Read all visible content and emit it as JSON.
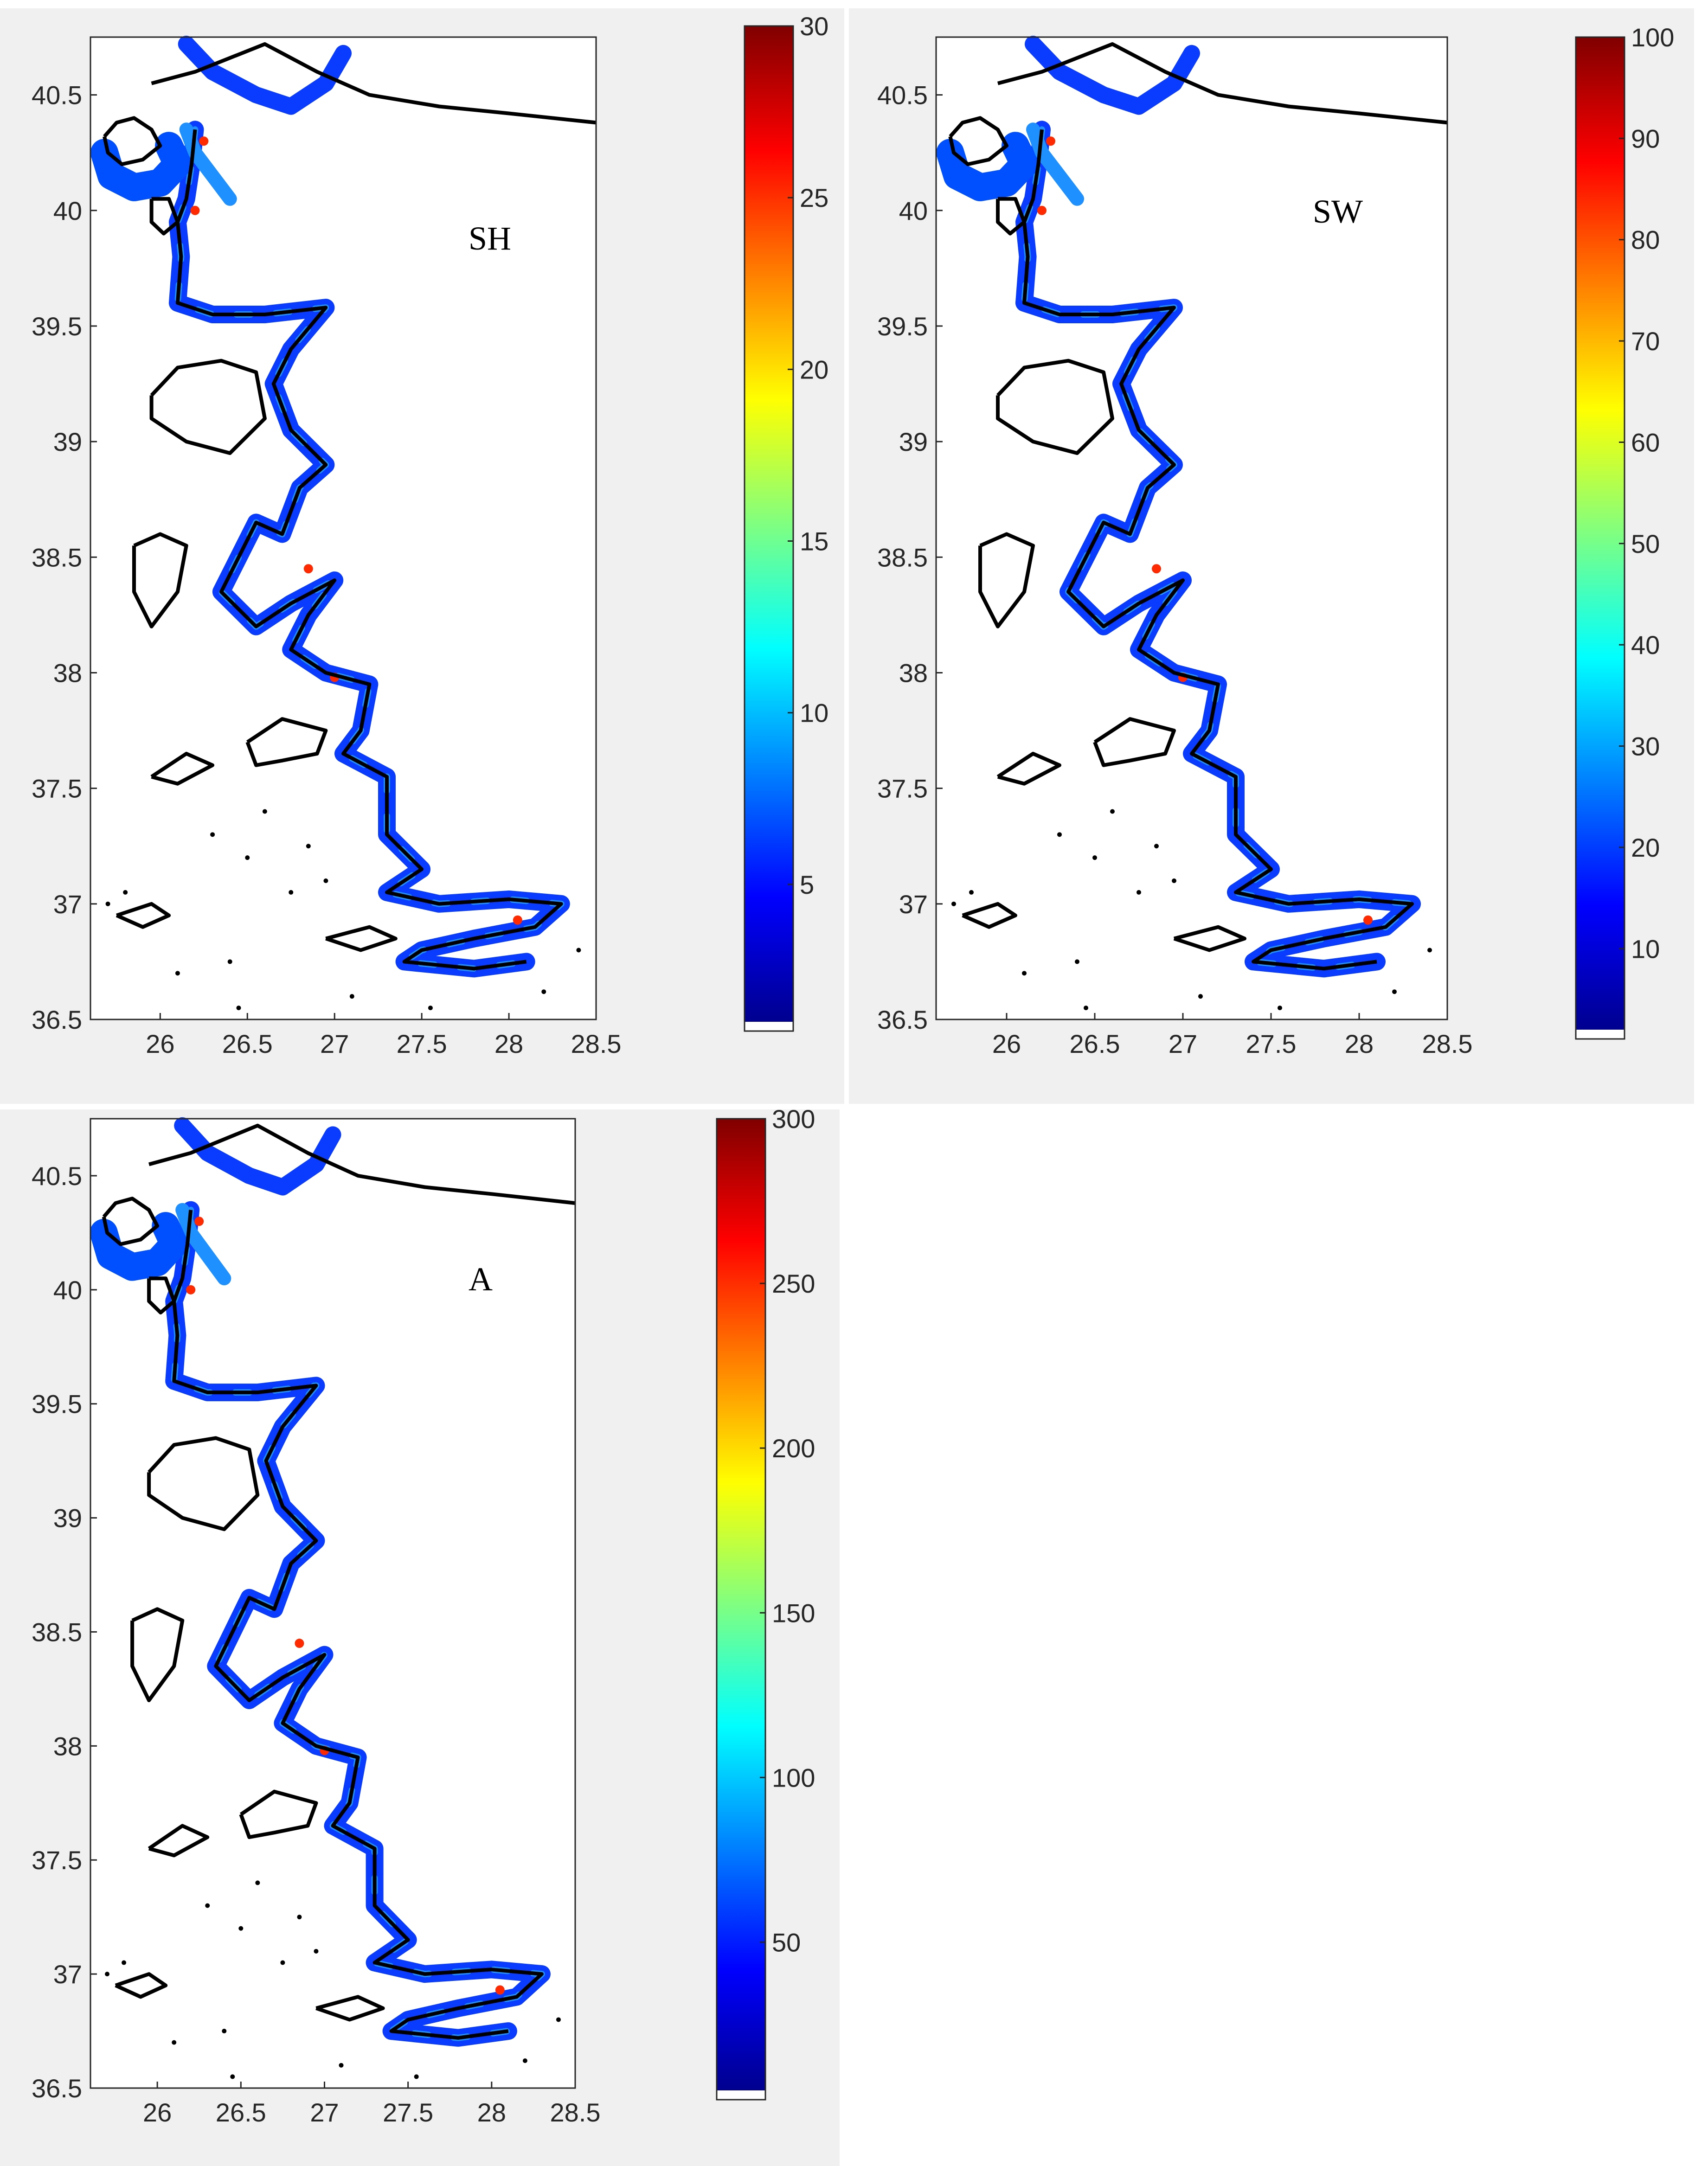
{
  "colormap": "jet",
  "colormap_stops": [
    "#00008f",
    "#0000ff",
    "#0080ff",
    "#00ffff",
    "#80ff80",
    "#ffff00",
    "#ff8000",
    "#ff0000",
    "#800000"
  ],
  "map_frame": {
    "xlim": [
      25.6,
      28.5
    ],
    "ylim": [
      36.5,
      40.75
    ],
    "xticks": [
      26,
      26.5,
      27,
      27.5,
      28,
      28.5
    ],
    "yticks": [
      36.5,
      37,
      37.5,
      38,
      38.5,
      39,
      39.5,
      40,
      40.5
    ]
  },
  "panels": [
    {
      "id": "sh",
      "label": "SH",
      "x_tick_labels": [
        "26",
        "26.5",
        "27",
        "27.5",
        "28",
        "28.5"
      ],
      "y_tick_labels": [
        "36.5",
        "37",
        "37.5",
        "38",
        "38.5",
        "39",
        "39.5",
        "40",
        "40.5"
      ],
      "colorbar": {
        "min": 1,
        "max": 30,
        "ticks": [
          "5",
          "10",
          "15",
          "20",
          "25",
          "30"
        ],
        "tick_values": [
          5,
          10,
          15,
          20,
          25,
          30
        ]
      }
    },
    {
      "id": "sw",
      "label": "SW",
      "x_tick_labels": [
        "26",
        "26.5",
        "27",
        "27.5",
        "28",
        "28.5"
      ],
      "y_tick_labels": [
        "36.5",
        "37",
        "37.5",
        "38",
        "38.5",
        "39",
        "39.5",
        "40",
        "40.5"
      ],
      "colorbar": {
        "min": 2,
        "max": 100,
        "ticks": [
          "10",
          "20",
          "30",
          "40",
          "50",
          "60",
          "70",
          "80",
          "90",
          "100"
        ],
        "tick_values": [
          10,
          20,
          30,
          40,
          50,
          60,
          70,
          80,
          90,
          100
        ]
      }
    },
    {
      "id": "a",
      "label": "A",
      "x_tick_labels": [
        "26",
        "26.5",
        "27",
        "27.5",
        "28",
        "28.5"
      ],
      "y_tick_labels": [
        "36.5",
        "37",
        "37.5",
        "38",
        "38.5",
        "39",
        "39.5",
        "40",
        "40.5"
      ],
      "colorbar": {
        "min": 5,
        "max": 300,
        "ticks": [
          "50",
          "100",
          "150",
          "200",
          "250",
          "300"
        ],
        "tick_values": [
          50,
          100,
          150,
          200,
          250,
          300
        ]
      }
    }
  ]
}
